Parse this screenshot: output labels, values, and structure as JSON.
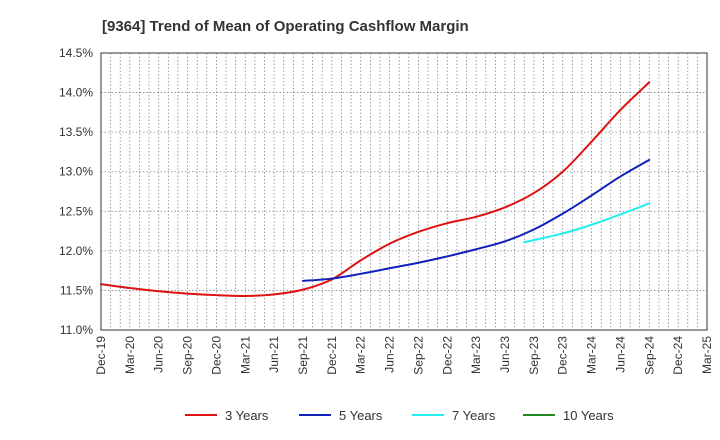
{
  "chart_data": {
    "type": "line",
    "title": "[9364]  Trend of Mean of Operating Cashflow Margin",
    "xlabel": "",
    "ylabel": "",
    "ylim": [
      11.0,
      14.5
    ],
    "y_ticks": [
      11.0,
      11.5,
      12.0,
      12.5,
      13.0,
      13.5,
      14.0,
      14.5
    ],
    "y_tick_labels": [
      "11.0%",
      "11.5%",
      "12.0%",
      "12.5%",
      "13.0%",
      "13.5%",
      "14.0%",
      "14.5%"
    ],
    "x_tick_labels": [
      "Dec-19",
      "Mar-20",
      "Jun-20",
      "Sep-20",
      "Dec-20",
      "Mar-21",
      "Jun-21",
      "Sep-21",
      "Dec-21",
      "Mar-22",
      "Jun-22",
      "Sep-22",
      "Dec-22",
      "Mar-23",
      "Jun-23",
      "Sep-23",
      "Dec-23",
      "Mar-24",
      "Jun-24",
      "Sep-24",
      "Dec-24",
      "Mar-25"
    ],
    "x_range_months": [
      0,
      63
    ],
    "grid": true,
    "legend_position": "bottom",
    "series": [
      {
        "name": "3 Years",
        "color": "#dd1111",
        "points": [
          [
            0,
            11.58
          ],
          [
            3,
            11.53
          ],
          [
            6,
            11.49
          ],
          [
            9,
            11.46
          ],
          [
            12,
            11.44
          ],
          [
            15,
            11.43
          ],
          [
            18,
            11.45
          ],
          [
            21,
            11.51
          ],
          [
            24,
            11.64
          ],
          [
            27,
            11.88
          ],
          [
            30,
            12.09
          ],
          [
            33,
            12.24
          ],
          [
            36,
            12.35
          ],
          [
            39,
            12.43
          ],
          [
            42,
            12.55
          ],
          [
            45,
            12.73
          ],
          [
            48,
            13.0
          ],
          [
            51,
            13.38
          ],
          [
            54,
            13.78
          ],
          [
            57,
            14.13
          ]
        ]
      },
      {
        "name": "5 Years",
        "color": "#1122bb",
        "points": [
          [
            21,
            11.62
          ],
          [
            24,
            11.65
          ],
          [
            27,
            11.71
          ],
          [
            30,
            11.78
          ],
          [
            33,
            11.85
          ],
          [
            36,
            11.93
          ],
          [
            39,
            12.02
          ],
          [
            42,
            12.12
          ],
          [
            45,
            12.27
          ],
          [
            48,
            12.47
          ],
          [
            51,
            12.7
          ],
          [
            54,
            12.94
          ],
          [
            57,
            13.15
          ]
        ]
      },
      {
        "name": "7 Years",
        "color": "#22eeee",
        "points": [
          [
            44,
            12.11
          ],
          [
            48,
            12.22
          ],
          [
            51,
            12.33
          ],
          [
            54,
            12.46
          ],
          [
            57,
            12.6
          ]
        ]
      },
      {
        "name": "10 Years",
        "color": "#228822",
        "points": []
      }
    ]
  }
}
